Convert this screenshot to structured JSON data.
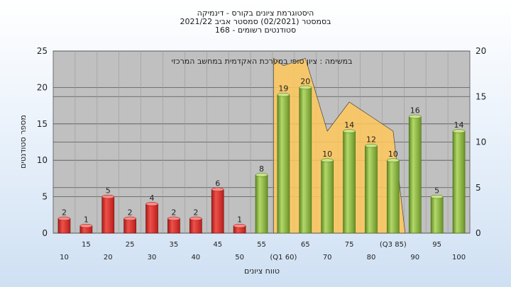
{
  "title_lines": [
    "היסטוגרמת ציונים בקורס - דינמיקה",
    "בסמסטר   (02/2021)  סמסטר אביב 2021/22",
    "סטודנטים רשומים - 168"
  ],
  "chart_data": {
    "type": "bar",
    "ylabel": "מספר סטודנטים",
    "xlabel": "טווח ציונים",
    "annotation": "במשימה : ציון סופי במערכת האקדמית במחשב המרכזי",
    "ylim": [
      0,
      25
    ],
    "y2lim": [
      0,
      20
    ],
    "yticks": [
      0,
      5,
      10,
      15,
      20,
      25
    ],
    "y2ticks": [
      0,
      5,
      10,
      15,
      20
    ],
    "grid": true,
    "categories": [
      "10",
      "15",
      "20",
      "25",
      "30",
      "35",
      "40",
      "45",
      "50",
      "55",
      "60",
      "65",
      "70",
      "75",
      "80",
      "85",
      "90",
      "95",
      "100"
    ],
    "x_tick_labels": [
      "10",
      "15",
      "20",
      "25",
      "30",
      "35",
      "40",
      "45",
      "50",
      "55",
      "(Q1 60)",
      "65",
      "70",
      "75",
      "80",
      "(Q3 85)",
      "90",
      "95",
      "100"
    ],
    "values": [
      2,
      1,
      5,
      2,
      4,
      2,
      2,
      6,
      1,
      8,
      19,
      20,
      10,
      14,
      12,
      10,
      16,
      5,
      14
    ],
    "bar_colors": {
      "fail": "#d9302c",
      "pass": "#8bb83a"
    },
    "pass_from": "55",
    "quartile_band": {
      "q1": "60",
      "q3": "85",
      "color": "#ffc85a"
    }
  }
}
